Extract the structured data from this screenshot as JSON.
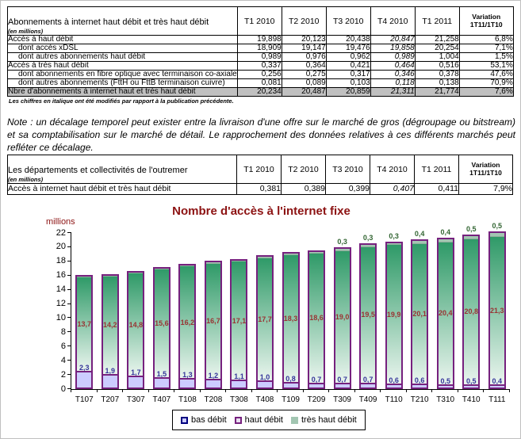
{
  "table1": {
    "title": "Abonnements à internet haut débit et très haut débit",
    "subtitle": "(en millions)",
    "quarter_columns": [
      "T1 2010",
      "T2 2010",
      "T3 2010",
      "T4 2010",
      "T1 2011"
    ],
    "variation_column": {
      "line1": "Variation",
      "line2": "1T11/1T10"
    },
    "rows": [
      {
        "label": "Accès à haut débit",
        "indent": 0,
        "values": [
          "19,898",
          "20,123",
          "20,438",
          "20,847",
          "21,258",
          "6,8%"
        ],
        "style": "normal",
        "italic_cells": [
          3
        ]
      },
      {
        "label": "dont accès xDSL",
        "indent": 1,
        "values": [
          "18,909",
          "19,147",
          "19,476",
          "19,858",
          "20,254",
          "7,1%"
        ],
        "style": "normal",
        "italic_cells": [
          3
        ]
      },
      {
        "label": "dont autres abonnements haut débit",
        "indent": 1,
        "values": [
          "0,989",
          "0,976",
          "0,962",
          "0,989",
          "1,004",
          "1,5%"
        ],
        "style": "normal",
        "italic_cells": [
          3
        ]
      },
      {
        "label": "Accès à très haut débit",
        "indent": 0,
        "values": [
          "0,337",
          "0,364",
          "0,421",
          "0,464",
          "0,516",
          "53,1%"
        ],
        "style": "normal",
        "italic_cells": [
          3
        ]
      },
      {
        "label": "dont abonnements en fibre optique avec terminaison co-axiale",
        "indent": 1,
        "values": [
          "0,256",
          "0,275",
          "0,317",
          "0,346",
          "0,378",
          "47,6%"
        ],
        "style": "normal",
        "italic_cells": [
          3
        ]
      },
      {
        "label": "dont autres abonnements (FttH ou FttB terminaison cuivre)",
        "indent": 1,
        "values": [
          "0,081",
          "0,089",
          "0,103",
          "0,118",
          "0,138",
          "70,9%"
        ],
        "style": "normal",
        "italic_cells": [
          3
        ]
      },
      {
        "label": "Nbre d'abonnements à internet haut et très haut débit",
        "indent": 0,
        "values": [
          "20,234",
          "20,487",
          "20,859",
          "21,311",
          "21,774",
          "7,6%"
        ],
        "style": "total",
        "italic_cells": [
          3
        ]
      }
    ],
    "footnote": "Les chiffres en italique ont été modifiés par rapport à la publication précédente."
  },
  "note": "Note : un décalage temporel peut exister entre la livraison d'une offre sur le marché de gros (dégroupage ou bitstream) et sa comptabilisation sur le marché de détail. Le rapprochement des données relatives à ces différents marchés peut refléter ce décalage.",
  "table2": {
    "title": "Les départements et collectivités de l'outremer",
    "subtitle": "(en millions)",
    "quarter_columns": [
      "T1 2010",
      "T2 2010",
      "T3 2010",
      "T4 2010",
      "T1 2011"
    ],
    "variation_column": {
      "line1": "Variation",
      "line2": "1T11/1T10"
    },
    "rows": [
      {
        "label": "Accès à internet haut débit et très haut débit",
        "indent": 0,
        "values": [
          "0,381",
          "0,389",
          "0,399",
          "0,407",
          "0,411",
          "7,9%"
        ],
        "style": "normal",
        "italic_cells": [
          3
        ]
      }
    ]
  },
  "chart_data": {
    "type": "bar",
    "stacked": true,
    "title": "Nombre d'accès à l'internet fixe",
    "xlabel": "",
    "ylabel": "millions",
    "ylim": [
      0,
      22
    ],
    "ytick_step": 2,
    "grid": false,
    "legend_position": "bottom",
    "categories": [
      "T107",
      "T207",
      "T307",
      "T407",
      "T108",
      "T208",
      "T308",
      "T408",
      "T109",
      "T209",
      "T309",
      "T409",
      "T110",
      "T210",
      "T310",
      "T410",
      "T111"
    ],
    "series": [
      {
        "name": "bas débit",
        "values": [
          2.3,
          1.9,
          1.7,
          1.5,
          1.3,
          1.2,
          1.1,
          1.0,
          0.8,
          0.7,
          0.7,
          0.7,
          0.6,
          0.6,
          0.5,
          0.5,
          0.4
        ],
        "labels": [
          "2,3",
          "1,9",
          "1,7",
          "1,5",
          "1,3",
          "1,2",
          "1,1",
          "1,0",
          "0,8",
          "0,7",
          "0,7",
          "0,7",
          "0,6",
          "0,6",
          "0,5",
          "0,5",
          "0,4"
        ]
      },
      {
        "name": "haut débit",
        "values": [
          13.7,
          14.2,
          14.8,
          15.6,
          16.2,
          16.7,
          17.1,
          17.7,
          18.3,
          18.6,
          19.0,
          19.5,
          19.9,
          20.1,
          20.4,
          20.8,
          21.3
        ],
        "labels": [
          "13,7",
          "14,2",
          "14,8",
          "15,6",
          "16,2",
          "16,7",
          "17,1",
          "17,7",
          "18,3",
          "18,6",
          "19,0",
          "19,5",
          "19,9",
          "20,1",
          "20,4",
          "20,8",
          "21,3"
        ]
      },
      {
        "name": "très haut débit",
        "values": [
          0.05,
          0.05,
          0.1,
          0.1,
          0.1,
          0.15,
          0.15,
          0.2,
          0.2,
          0.25,
          0.3,
          0.3,
          0.3,
          0.4,
          0.4,
          0.5,
          0.5
        ],
        "labels": [
          "",
          "",
          "",
          "",
          "",
          "",
          "",
          "",
          "",
          "",
          "0,3",
          "0,3",
          "0,3",
          "0,4",
          "0,4",
          "0,5",
          "0,5"
        ]
      }
    ],
    "legend": [
      "bas débit",
      "haut débit",
      "très haut débit"
    ],
    "colors": {
      "bas_fill": "#ccccff",
      "bas_border": "#76217e",
      "bas_label": "#333399",
      "haut_fill_top": "#2f9a68",
      "haut_fill_bottom": "#eaf5ee",
      "haut_border": "#76217e",
      "haut_label": "#993333",
      "tres_fill": "#a3c6b2",
      "tres_label": "#336633",
      "title": "#8c1212",
      "legend_bas_border": "#000080"
    }
  }
}
